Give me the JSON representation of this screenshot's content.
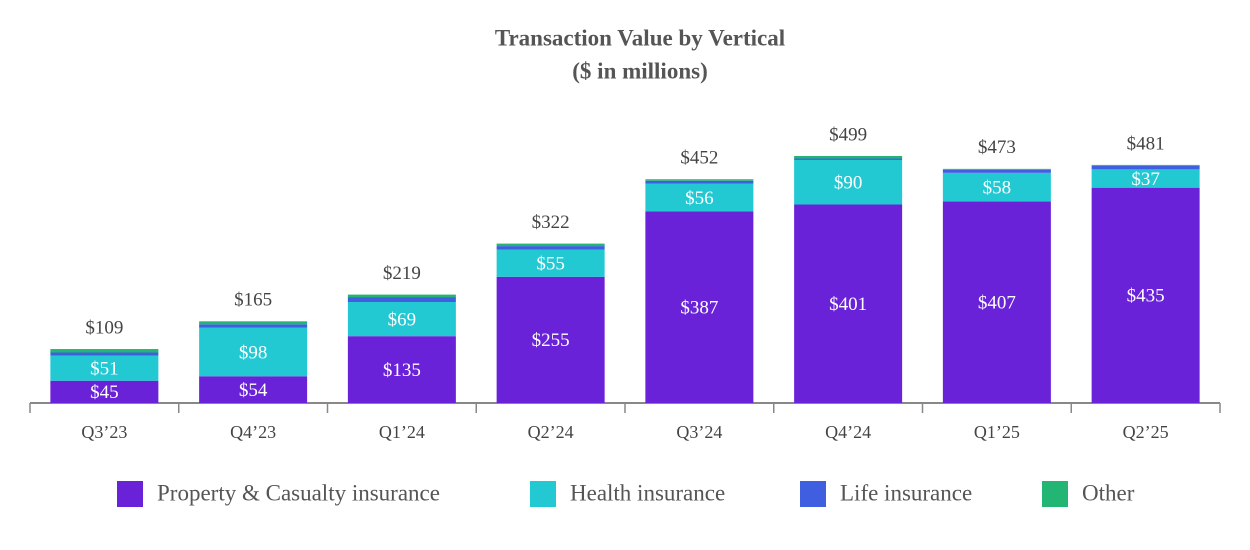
{
  "chart_data": {
    "type": "stacked_bar",
    "title": "Transaction Value by Vertical",
    "subtitle": "($ in millions)",
    "categories": [
      "Q3’23",
      "Q4’23",
      "Q1’24",
      "Q2’24",
      "Q3’24",
      "Q4’24",
      "Q1’25",
      "Q2’25"
    ],
    "series": [
      {
        "name": "Property & Casualty insurance",
        "color": "#6a22d8",
        "values": [
          45,
          54,
          135,
          255,
          387,
          401,
          407,
          435
        ],
        "value_labels": [
          "$45",
          "$54",
          "$135",
          "$255",
          "$387",
          "$401",
          "$407",
          "$435"
        ]
      },
      {
        "name": "Health insurance",
        "color": "#22c9d3",
        "values": [
          51,
          98,
          69,
          55,
          56,
          90,
          58,
          37
        ],
        "value_labels": [
          "$51",
          "$98",
          "$69",
          "$55",
          "$56",
          "$90",
          "$58",
          "$37"
        ]
      },
      {
        "name": "Life insurance",
        "color": "#3f5fe0",
        "values": [
          6,
          7,
          10,
          7,
          6,
          3,
          6,
          7
        ]
      },
      {
        "name": "Other",
        "color": "#22b573",
        "values": [
          7,
          6,
          5,
          5,
          3,
          5,
          2,
          2
        ]
      }
    ],
    "totals": [
      109,
      165,
      219,
      322,
      452,
      499,
      473,
      481
    ],
    "total_labels": [
      "$109",
      "$165",
      "$219",
      "$322",
      "$452",
      "$499",
      "$473",
      "$481"
    ],
    "legend": "bottom"
  }
}
